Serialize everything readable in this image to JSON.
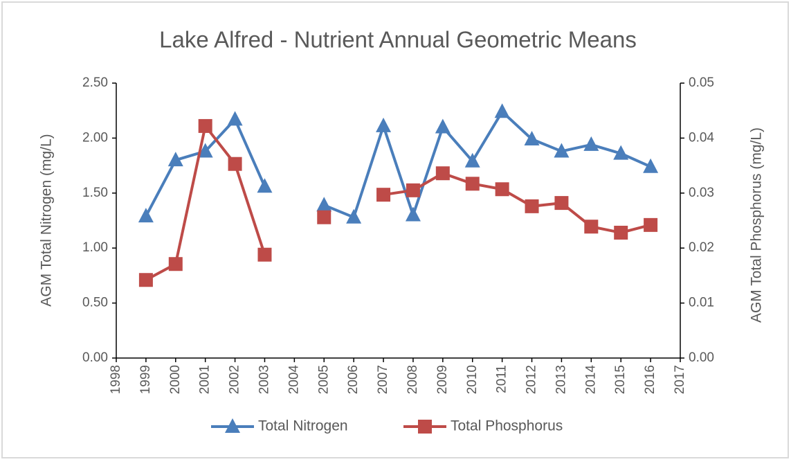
{
  "chart_data": {
    "type": "line",
    "title": "Lake Alfred - Nutrient Annual Geometric Means",
    "y_label": "AGM Total Nitrogen (mg/L)",
    "y2_label": "AGM Total Phosphorus (mg/L)",
    "x": [
      1999,
      2000,
      2001,
      2002,
      2003,
      2004,
      2005,
      2006,
      2007,
      2008,
      2009,
      2010,
      2011,
      2012,
      2013,
      2014,
      2015,
      2016
    ],
    "series": [
      {
        "name": "Total Nitrogen",
        "color": "#4a7ebb",
        "marker": "triangle",
        "values": [
          1.29,
          1.8,
          1.88,
          2.17,
          1.56,
          null,
          1.39,
          1.28,
          2.11,
          1.3,
          2.1,
          1.79,
          2.24,
          1.99,
          1.88,
          1.94,
          1.86,
          1.74
        ]
      },
      {
        "name": "Total Phosphorus",
        "color": "#be4b48",
        "marker": "square",
        "axis": "y2",
        "values": [
          0.0142,
          0.0171,
          0.0422,
          0.0353,
          0.0188,
          null,
          0.0256,
          null,
          0.0297,
          0.0305,
          0.0336,
          0.0317,
          0.0307,
          0.0276,
          0.0282,
          0.0239,
          0.0228,
          0.0242
        ]
      }
    ],
    "xlim": [
      1998,
      2017
    ],
    "xticks": [
      1998,
      1999,
      2000,
      2001,
      2002,
      2003,
      2004,
      2005,
      2006,
      2007,
      2008,
      2009,
      2010,
      2011,
      2012,
      2013,
      2014,
      2015,
      2016,
      2017
    ],
    "ylim": [
      0,
      2.5
    ],
    "yticks": [
      {
        "value": 0,
        "label": "0.00"
      },
      {
        "value": 0.5,
        "label": "0.50"
      },
      {
        "value": 1,
        "label": "1.00"
      },
      {
        "value": 1.5,
        "label": "1.50"
      },
      {
        "value": 2,
        "label": "2.00"
      },
      {
        "value": 2.5,
        "label": "2.50"
      }
    ],
    "y2lim": [
      0,
      0.05
    ],
    "y2ticks": [
      {
        "value": 0,
        "label": "0.00"
      },
      0.01,
      0.02,
      0.03,
      0.04,
      0.05
    ],
    "grid": false,
    "legend": "bottom"
  }
}
